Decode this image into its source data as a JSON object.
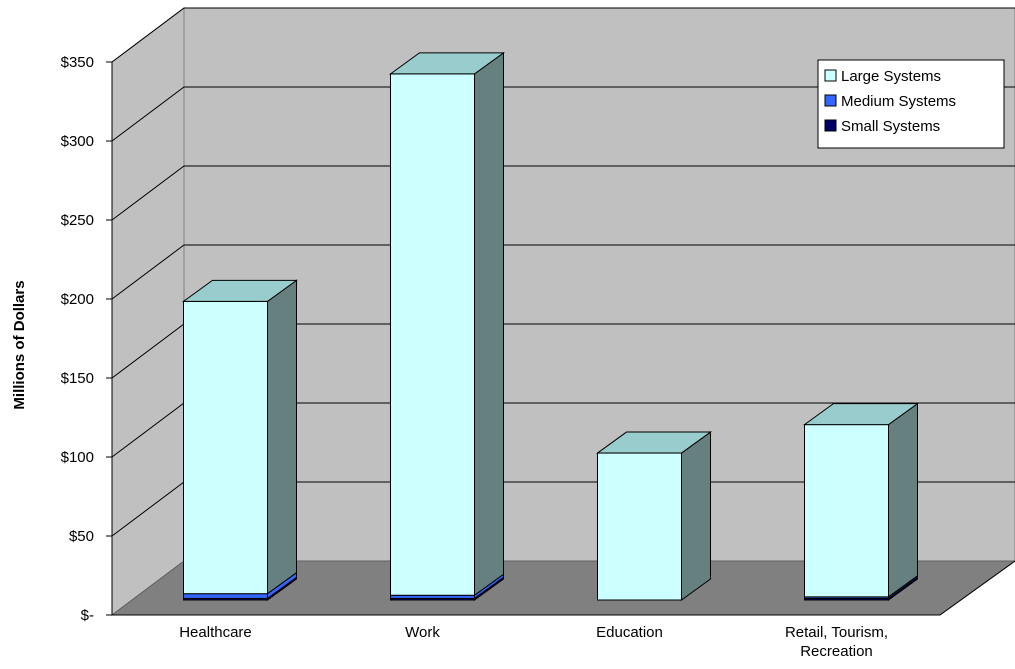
{
  "chart_data": {
    "type": "bar",
    "stacked": true,
    "three_d": true,
    "title": "",
    "xlabel": "",
    "ylabel": "Millions of Dollars",
    "categories": [
      "Healthcare",
      "Work",
      "Education",
      "Retail, Tourism, Recreation"
    ],
    "ylim": [
      0,
      350
    ],
    "ytick_values": [
      0,
      50,
      100,
      150,
      200,
      250,
      300,
      350
    ],
    "ytick_labels": [
      "$-",
      "$50",
      "$100",
      "$150",
      "$200",
      "$250",
      "$300",
      "$350"
    ],
    "grid": true,
    "legend_position": "top-right",
    "series": [
      {
        "name": "Small Systems",
        "color": "#000066",
        "values": [
          1,
          1,
          0,
          1
        ]
      },
      {
        "name": "Medium Systems",
        "color": "#3366ff",
        "values": [
          3,
          2,
          0,
          1
        ]
      },
      {
        "name": "Large Systems",
        "color": "#ccffff",
        "values": [
          185,
          330,
          93,
          109
        ]
      }
    ],
    "legend_order": [
      "Large Systems",
      "Medium Systems",
      "Small Systems"
    ],
    "colors": {
      "wall": "#c0c0c0",
      "floor": "#808080",
      "bar_side": "#668080",
      "bar_top": "#99cccc",
      "gridline": "#000000"
    }
  }
}
